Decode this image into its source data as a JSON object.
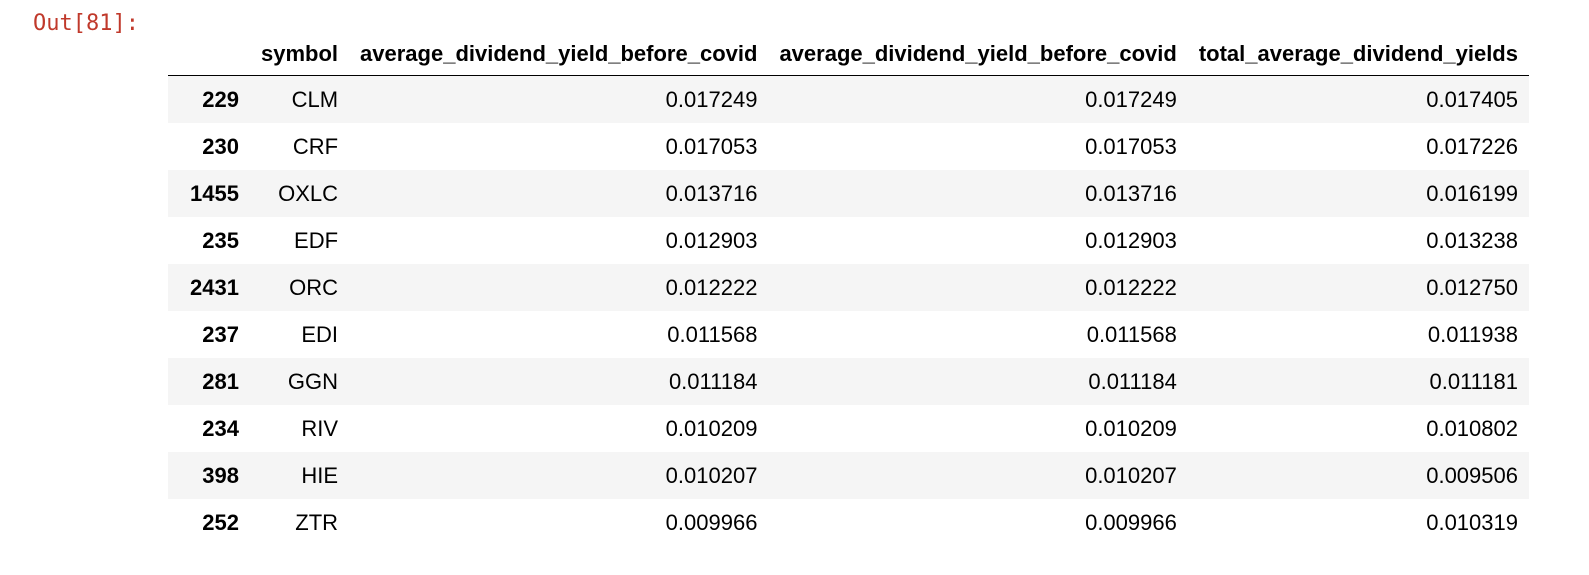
{
  "prompt": "Out[81]:",
  "table": {
    "columns": [
      "",
      "symbol",
      "average_dividend_yield_before_covid",
      "average_dividend_yield_before_covid",
      "total_average_dividend_yields"
    ],
    "rows": [
      {
        "index": "229",
        "symbol": "CLM",
        "before_a": "0.017249",
        "before_b": "0.017249",
        "total": "0.017405"
      },
      {
        "index": "230",
        "symbol": "CRF",
        "before_a": "0.017053",
        "before_b": "0.017053",
        "total": "0.017226"
      },
      {
        "index": "1455",
        "symbol": "OXLC",
        "before_a": "0.013716",
        "before_b": "0.013716",
        "total": "0.016199"
      },
      {
        "index": "235",
        "symbol": "EDF",
        "before_a": "0.012903",
        "before_b": "0.012903",
        "total": "0.013238"
      },
      {
        "index": "2431",
        "symbol": "ORC",
        "before_a": "0.012222",
        "before_b": "0.012222",
        "total": "0.012750"
      },
      {
        "index": "237",
        "symbol": "EDI",
        "before_a": "0.011568",
        "before_b": "0.011568",
        "total": "0.011938"
      },
      {
        "index": "281",
        "symbol": "GGN",
        "before_a": "0.011184",
        "before_b": "0.011184",
        "total": "0.011181"
      },
      {
        "index": "234",
        "symbol": "RIV",
        "before_a": "0.010209",
        "before_b": "0.010209",
        "total": "0.010802"
      },
      {
        "index": "398",
        "symbol": "HIE",
        "before_a": "0.010207",
        "before_b": "0.010207",
        "total": "0.009506"
      },
      {
        "index": "252",
        "symbol": "ZTR",
        "before_a": "0.009966",
        "before_b": "0.009966",
        "total": "0.010319"
      }
    ]
  }
}
